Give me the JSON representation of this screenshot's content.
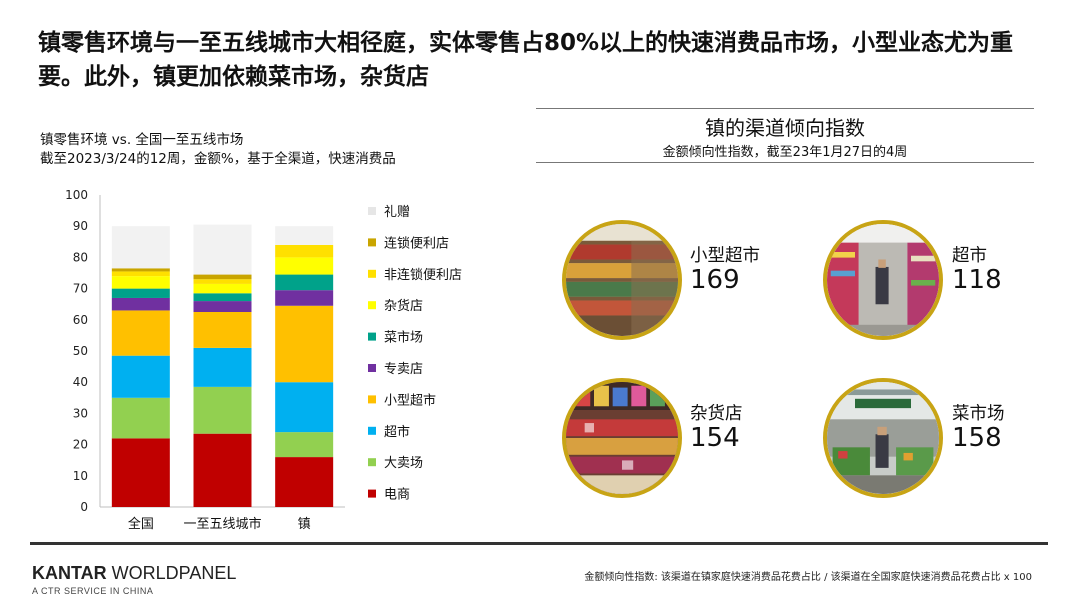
{
  "headline": "镇零售环境与一至五线城市大相径庭，实体零售占80%以上的快速消费品市场，小型业态尤为重要。此外，镇更加依赖菜市场，杂货店",
  "chart_title_line1": "镇零售环境 vs. 全国一至五线市场",
  "chart_title_line2": "截至2023/3/24的12周，金额%，基于全渠道，快速消费品",
  "chart_data": {
    "type": "bar",
    "stacked": true,
    "categories": [
      "全国",
      "一至五线城市",
      "镇"
    ],
    "ylim": [
      0,
      100
    ],
    "yticks": [
      0,
      10,
      20,
      30,
      40,
      50,
      60,
      70,
      80,
      90,
      100
    ],
    "legend_position": "right",
    "series": [
      {
        "name": "电商",
        "color": "#c00000",
        "values": [
          22,
          23.5,
          16
        ]
      },
      {
        "name": "大卖场",
        "color": "#92d050",
        "values": [
          13,
          15,
          8
        ]
      },
      {
        "name": "超市",
        "color": "#00b0f0",
        "values": [
          13.5,
          12.5,
          16
        ]
      },
      {
        "name": "小型超市",
        "color": "#ffc000",
        "values": [
          14.5,
          11.5,
          24.5
        ]
      },
      {
        "name": "专卖店",
        "color": "#7030a0",
        "values": [
          4,
          3.5,
          5
        ]
      },
      {
        "name": "菜市场",
        "color": "#00a28a",
        "values": [
          3,
          2.5,
          5
        ]
      },
      {
        "name": "杂货店",
        "color": "#ffff00",
        "values": [
          4,
          3,
          5.5
        ]
      },
      {
        "name": "非连锁便利店",
        "color": "#ffe000",
        "values": [
          1.5,
          1.5,
          4
        ]
      },
      {
        "name": "连锁便利店",
        "color": "#c9a500",
        "values": [
          1,
          1.5,
          0
        ]
      },
      {
        "name": "礼赠",
        "color": "#f2f2f2",
        "values": [
          13.5,
          16,
          6
        ]
      }
    ]
  },
  "index_title": "镇的渠道倾向指数",
  "index_subtitle": "金额倾向性指数，截至23年1月27日的4周",
  "channels": [
    {
      "name": "小型超市",
      "value": "169"
    },
    {
      "name": "超市",
      "value": "118"
    },
    {
      "name": "杂货店",
      "value": "154"
    },
    {
      "name": "菜市场",
      "value": "158"
    }
  ],
  "colors": {
    "accent_ring": "#c8a415"
  },
  "logo_main_bold": "KANTAR",
  "logo_main_rest": " WORLDPANEL",
  "logo_sub": "A CTR SERVICE IN CHINA",
  "footnote": "金额倾向性指数: 该渠道在镇家庭快速消费品花费占比 / 该渠道在全国家庭快速消费品花费占比 x 100"
}
